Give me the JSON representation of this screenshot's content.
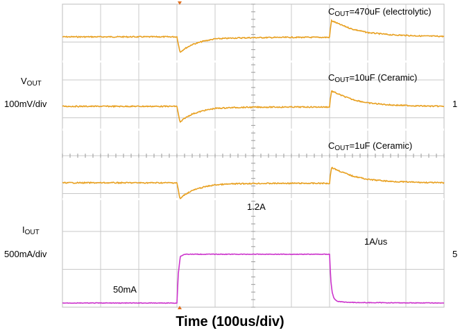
{
  "figure": {
    "title": "Time (100us/div)"
  },
  "left_labels": {
    "vout_main": "V",
    "vout_sub": "OUT",
    "vout_scale": "100mV/div",
    "iout_main": "I",
    "iout_sub": "OUT",
    "iout_scale": "500mA/div"
  },
  "right_markers": {
    "ch1": "1",
    "ch2": "5"
  },
  "colors": {
    "vout_trace": "#e8a020",
    "iout_trace": "#cc33cc",
    "grid": "#c8c8c8",
    "divider": "#ffffff",
    "background": "#ffffff"
  },
  "chart_data": {
    "type": "line",
    "title": "Time (100us/div)",
    "xlabel": "Time (100us/div)",
    "grid": true,
    "x_divisions": 10,
    "xlim": [
      0,
      1000
    ],
    "x_unit": "us",
    "panels": [
      {
        "label_main": "C",
        "label_sub": "OUT",
        "label_tail": "=470uF (electrolytic)",
        "series": [
          {
            "x": [
              0,
              300,
              308,
              320,
              340,
              370,
              400,
              450,
              500,
              600,
              700,
              700,
              705,
              730,
              760,
              800,
              860,
              940,
              1000
            ],
            "y": [
              0,
              0,
              -90,
              -70,
              -45,
              -25,
              -12,
              -7,
              -5,
              -3,
              -3,
              10,
              95,
              70,
              45,
              25,
              12,
              5,
              3
            ]
          }
        ]
      },
      {
        "label_main": "C",
        "label_sub": "OUT",
        "label_tail": "=10uF (Ceramic)",
        "series": [
          {
            "x": [
              0,
              300,
              308,
              320,
              340,
              370,
              400,
              450,
              500,
              600,
              700,
              700,
              705,
              730,
              760,
              800,
              860,
              940,
              1000
            ],
            "y": [
              0,
              0,
              -95,
              -70,
              -45,
              -25,
              -12,
              -7,
              -5,
              -4,
              -4,
              10,
              90,
              65,
              40,
              20,
              8,
              2,
              0
            ]
          }
        ]
      },
      {
        "label_main": "C",
        "label_sub": "OUT",
        "label_tail": "=1uF (Ceramic)",
        "series": [
          {
            "x": [
              0,
              300,
              308,
              320,
              340,
              370,
              400,
              450,
              500,
              600,
              700,
              700,
              705,
              730,
              760,
              800,
              860,
              940,
              1000
            ],
            "y": [
              0,
              0,
              -95,
              -70,
              -45,
              -25,
              -12,
              -6,
              -4,
              -3,
              -3,
              10,
              90,
              65,
              40,
              20,
              8,
              2,
              0
            ]
          }
        ]
      }
    ],
    "current": {
      "x": [
        0,
        300,
        301,
        303,
        309,
        320,
        700,
        701,
        703,
        707,
        712,
        720,
        740,
        780,
        1000
      ],
      "y": [
        0.05,
        0.05,
        0.2,
        0.7,
        1.15,
        1.2,
        1.2,
        1.0,
        0.6,
        0.3,
        0.15,
        0.09,
        0.07,
        0.06,
        0.05
      ],
      "unit": "A",
      "annotations": {
        "high": "1.2A",
        "low": "50mA",
        "slew": "1A/us"
      }
    }
  }
}
